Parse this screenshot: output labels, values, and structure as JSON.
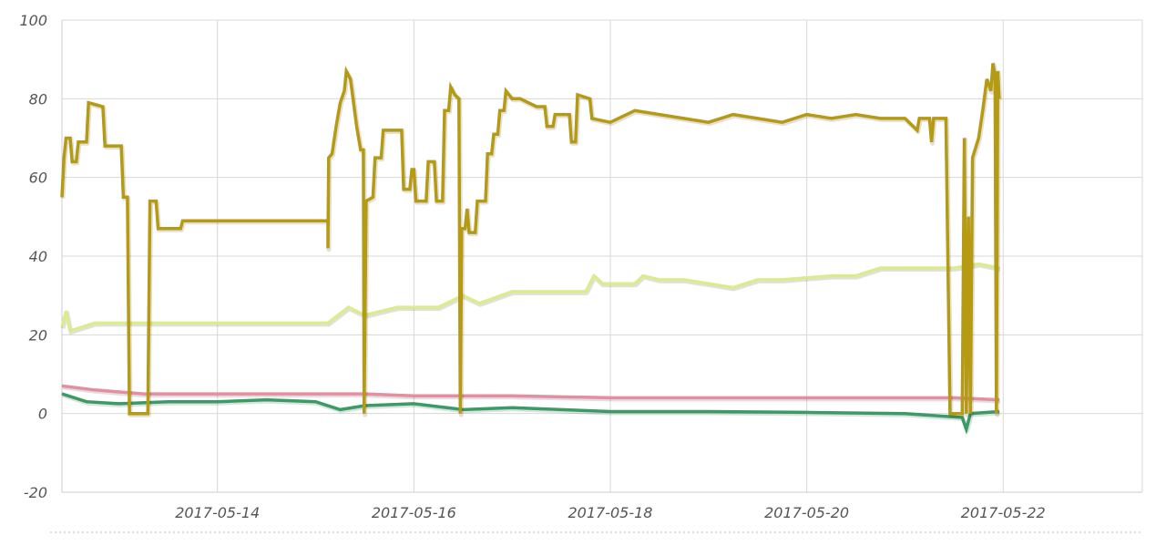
{
  "chart_data": {
    "type": "line",
    "title": "",
    "xlabel": "",
    "ylabel": "",
    "x_tick_labels": [
      "2017-05-14",
      "2017-05-16",
      "2017-05-18",
      "2017-05-20",
      "2017-05-22"
    ],
    "y_tick_labels": [
      "100",
      "80",
      "60",
      "40",
      "20",
      "0",
      "-20"
    ],
    "xlim": [
      "2017-05-12T10:00",
      "2017-05-23T10:00"
    ],
    "ylim": [
      -20,
      100
    ],
    "grid": true,
    "legend": "none",
    "series": [
      {
        "color": "#b59a12",
        "points": [
          [
            "2017-05-12T10:00",
            55
          ],
          [
            "2017-05-12T10:30",
            65
          ],
          [
            "2017-05-12T11:00",
            70
          ],
          [
            "2017-05-12T12:00",
            70
          ],
          [
            "2017-05-12T12:30",
            64
          ],
          [
            "2017-05-12T13:30",
            64
          ],
          [
            "2017-05-12T14:00",
            69
          ],
          [
            "2017-05-12T16:00",
            69
          ],
          [
            "2017-05-12T16:30",
            79
          ],
          [
            "2017-05-12T20:00",
            78
          ],
          [
            "2017-05-12T20:30",
            68
          ],
          [
            "2017-05-13T00:30",
            68
          ],
          [
            "2017-05-13T01:00",
            55
          ],
          [
            "2017-05-13T02:00",
            55
          ],
          [
            "2017-05-13T02:30",
            0
          ],
          [
            "2017-05-13T07:00",
            0
          ],
          [
            "2017-05-13T07:30",
            54
          ],
          [
            "2017-05-13T09:00",
            54
          ],
          [
            "2017-05-13T09:30",
            47
          ],
          [
            "2017-05-13T15:00",
            47
          ],
          [
            "2017-05-13T15:30",
            49
          ],
          [
            "2017-05-14T12:00",
            49
          ],
          [
            "2017-05-15T03:00",
            49
          ],
          [
            "2017-05-15T03:00",
            42
          ],
          [
            "2017-05-15T03:10",
            65
          ],
          [
            "2017-05-15T04:00",
            66
          ],
          [
            "2017-05-15T05:00",
            73
          ],
          [
            "2017-05-15T06:00",
            79
          ],
          [
            "2017-05-15T07:00",
            82
          ],
          [
            "2017-05-15T07:30",
            87
          ],
          [
            "2017-05-15T08:30",
            85
          ],
          [
            "2017-05-15T09:00",
            81
          ],
          [
            "2017-05-15T10:00",
            73
          ],
          [
            "2017-05-15T11:00",
            67
          ],
          [
            "2017-05-15T11:40",
            67
          ],
          [
            "2017-05-15T11:50",
            0
          ],
          [
            "2017-05-15T12:20",
            54
          ],
          [
            "2017-05-15T14:00",
            55
          ],
          [
            "2017-05-15T14:30",
            65
          ],
          [
            "2017-05-15T16:00",
            65
          ],
          [
            "2017-05-15T16:30",
            72
          ],
          [
            "2017-05-15T21:00",
            72
          ],
          [
            "2017-05-15T21:30",
            57
          ],
          [
            "2017-05-15T23:00",
            57
          ],
          [
            "2017-05-15T23:30",
            62
          ],
          [
            "2017-05-16T00:00",
            62
          ],
          [
            "2017-05-16T00:30",
            54
          ],
          [
            "2017-05-16T03:00",
            54
          ],
          [
            "2017-05-16T03:30",
            64
          ],
          [
            "2017-05-16T05:00",
            64
          ],
          [
            "2017-05-16T05:30",
            54
          ],
          [
            "2017-05-16T07:00",
            54
          ],
          [
            "2017-05-16T07:30",
            77
          ],
          [
            "2017-05-16T08:30",
            77
          ],
          [
            "2017-05-16T09:00",
            83
          ],
          [
            "2017-05-16T10:00",
            81
          ],
          [
            "2017-05-16T11:00",
            80
          ],
          [
            "2017-05-16T11:20",
            0
          ],
          [
            "2017-05-16T11:40",
            47
          ],
          [
            "2017-05-16T12:30",
            47
          ],
          [
            "2017-05-16T13:00",
            52
          ],
          [
            "2017-05-16T13:30",
            46
          ],
          [
            "2017-05-16T15:00",
            46
          ],
          [
            "2017-05-16T15:30",
            54
          ],
          [
            "2017-05-16T17:30",
            54
          ],
          [
            "2017-05-16T18:00",
            66
          ],
          [
            "2017-05-16T19:00",
            66
          ],
          [
            "2017-05-16T19:30",
            71
          ],
          [
            "2017-05-16T20:30",
            71
          ],
          [
            "2017-05-16T21:00",
            77
          ],
          [
            "2017-05-16T22:00",
            77
          ],
          [
            "2017-05-16T22:30",
            82
          ],
          [
            "2017-05-17T00:00",
            80
          ],
          [
            "2017-05-17T02:00",
            80
          ],
          [
            "2017-05-17T04:00",
            79
          ],
          [
            "2017-05-17T06:00",
            78
          ],
          [
            "2017-05-17T08:00",
            78
          ],
          [
            "2017-05-17T08:30",
            73
          ],
          [
            "2017-05-17T10:00",
            73
          ],
          [
            "2017-05-17T10:30",
            76
          ],
          [
            "2017-05-17T14:00",
            76
          ],
          [
            "2017-05-17T14:30",
            69
          ],
          [
            "2017-05-17T15:30",
            69
          ],
          [
            "2017-05-17T16:00",
            81
          ],
          [
            "2017-05-17T19:00",
            80
          ],
          [
            "2017-05-17T19:30",
            75
          ],
          [
            "2017-05-18T00:00",
            74
          ],
          [
            "2017-05-18T06:00",
            77
          ],
          [
            "2017-05-18T12:00",
            76
          ],
          [
            "2017-05-18T18:00",
            75
          ],
          [
            "2017-05-19T00:00",
            74
          ],
          [
            "2017-05-19T06:00",
            76
          ],
          [
            "2017-05-19T12:00",
            75
          ],
          [
            "2017-05-19T18:00",
            74
          ],
          [
            "2017-05-20T00:00",
            76
          ],
          [
            "2017-05-20T06:00",
            75
          ],
          [
            "2017-05-20T12:00",
            76
          ],
          [
            "2017-05-20T18:00",
            75
          ],
          [
            "2017-05-21T00:00",
            75
          ],
          [
            "2017-05-21T03:00",
            72
          ],
          [
            "2017-05-21T03:30",
            75
          ],
          [
            "2017-05-21T06:00",
            75
          ],
          [
            "2017-05-21T06:30",
            69
          ],
          [
            "2017-05-21T07:00",
            75
          ],
          [
            "2017-05-21T10:00",
            75
          ],
          [
            "2017-05-21T11:00",
            0
          ],
          [
            "2017-05-21T14:00",
            0
          ],
          [
            "2017-05-21T14:30",
            70
          ],
          [
            "2017-05-21T15:00",
            0
          ],
          [
            "2017-05-21T15:30",
            50
          ],
          [
            "2017-05-21T16:00",
            0
          ],
          [
            "2017-05-21T16:30",
            65
          ],
          [
            "2017-05-21T18:00",
            70
          ],
          [
            "2017-05-21T19:00",
            77
          ],
          [
            "2017-05-21T20:00",
            85
          ],
          [
            "2017-05-21T21:00",
            82
          ],
          [
            "2017-05-21T21:30",
            89
          ],
          [
            "2017-05-21T22:00",
            86
          ],
          [
            "2017-05-21T22:20",
            0
          ],
          [
            "2017-05-21T22:40",
            87
          ],
          [
            "2017-05-21T23:00",
            80
          ]
        ]
      },
      {
        "color": "#dcec8c",
        "points": [
          [
            "2017-05-12T10:00",
            22
          ],
          [
            "2017-05-12T11:00",
            26
          ],
          [
            "2017-05-12T12:00",
            21
          ],
          [
            "2017-05-12T18:00",
            23
          ],
          [
            "2017-05-13T06:00",
            23
          ],
          [
            "2017-05-13T12:00",
            23
          ],
          [
            "2017-05-14T00:00",
            23
          ],
          [
            "2017-05-14T12:00",
            23
          ],
          [
            "2017-05-15T03:00",
            23
          ],
          [
            "2017-05-15T08:00",
            27
          ],
          [
            "2017-05-15T12:00",
            25
          ],
          [
            "2017-05-15T20:00",
            27
          ],
          [
            "2017-05-16T06:00",
            27
          ],
          [
            "2017-05-16T12:00",
            30
          ],
          [
            "2017-05-16T16:00",
            28
          ],
          [
            "2017-05-17T00:00",
            31
          ],
          [
            "2017-05-17T12:00",
            31
          ],
          [
            "2017-05-17T18:00",
            31
          ],
          [
            "2017-05-17T20:00",
            35
          ],
          [
            "2017-05-17T22:00",
            33
          ],
          [
            "2017-05-18T06:00",
            33
          ],
          [
            "2017-05-18T08:00",
            35
          ],
          [
            "2017-05-18T12:00",
            34
          ],
          [
            "2017-05-18T18:00",
            34
          ],
          [
            "2017-05-19T00:00",
            33
          ],
          [
            "2017-05-19T06:00",
            32
          ],
          [
            "2017-05-19T12:00",
            34
          ],
          [
            "2017-05-19T18:00",
            34
          ],
          [
            "2017-05-20T06:00",
            35
          ],
          [
            "2017-05-20T12:00",
            35
          ],
          [
            "2017-05-20T18:00",
            37
          ],
          [
            "2017-05-21T06:00",
            37
          ],
          [
            "2017-05-21T12:00",
            37
          ],
          [
            "2017-05-21T18:00",
            38
          ],
          [
            "2017-05-21T23:00",
            37
          ]
        ]
      },
      {
        "color": "#e48ea0",
        "points": [
          [
            "2017-05-12T10:00",
            7
          ],
          [
            "2017-05-12T18:00",
            6
          ],
          [
            "2017-05-13T06:00",
            5
          ],
          [
            "2017-05-14T00:00",
            5
          ],
          [
            "2017-05-15T00:00",
            5
          ],
          [
            "2017-05-15T12:00",
            5
          ],
          [
            "2017-05-16T00:00",
            4.5
          ],
          [
            "2017-05-17T00:00",
            4.5
          ],
          [
            "2017-05-18T00:00",
            4
          ],
          [
            "2017-05-19T00:00",
            4
          ],
          [
            "2017-05-20T00:00",
            4
          ],
          [
            "2017-05-21T00:00",
            4
          ],
          [
            "2017-05-21T12:00",
            4
          ],
          [
            "2017-05-21T23:00",
            3.5
          ]
        ]
      },
      {
        "color": "#3a9c64",
        "points": [
          [
            "2017-05-12T10:00",
            5
          ],
          [
            "2017-05-12T16:00",
            3
          ],
          [
            "2017-05-13T00:00",
            2.5
          ],
          [
            "2017-05-13T12:00",
            3
          ],
          [
            "2017-05-14T00:00",
            3
          ],
          [
            "2017-05-14T12:00",
            3.5
          ],
          [
            "2017-05-15T00:00",
            3
          ],
          [
            "2017-05-15T06:00",
            1
          ],
          [
            "2017-05-15T12:00",
            2
          ],
          [
            "2017-05-16T00:00",
            2.5
          ],
          [
            "2017-05-16T12:00",
            1
          ],
          [
            "2017-05-17T00:00",
            1.5
          ],
          [
            "2017-05-17T12:00",
            1
          ],
          [
            "2017-05-18T00:00",
            0.5
          ],
          [
            "2017-05-19T00:00",
            0.5
          ],
          [
            "2017-05-20T00:00",
            0.3
          ],
          [
            "2017-05-21T00:00",
            0
          ],
          [
            "2017-05-21T14:00",
            -1
          ],
          [
            "2017-05-21T15:00",
            -4
          ],
          [
            "2017-05-21T16:00",
            0
          ],
          [
            "2017-05-21T23:00",
            0.5
          ]
        ]
      }
    ]
  }
}
